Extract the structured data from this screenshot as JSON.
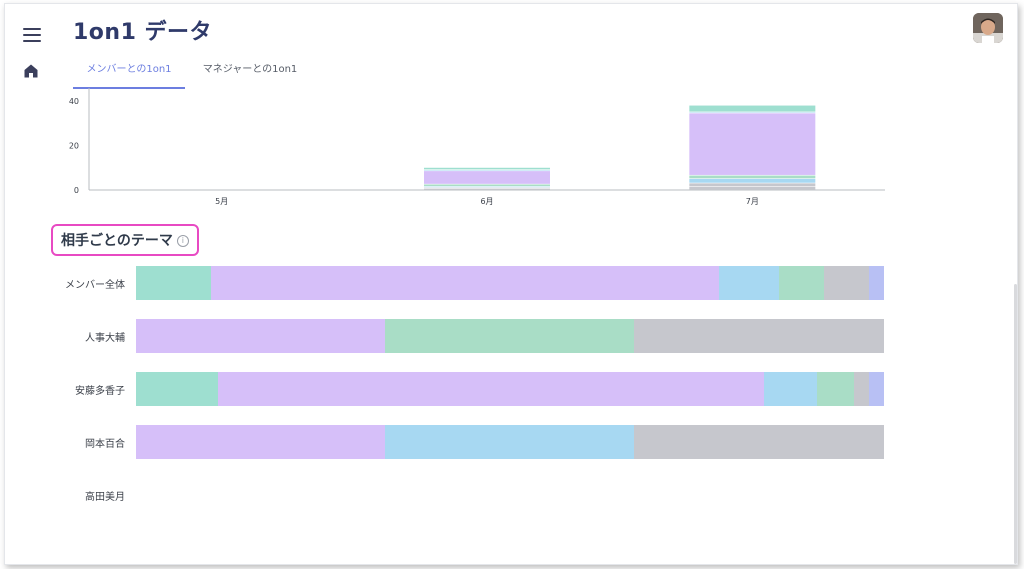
{
  "header": {
    "title": "1on1 データ",
    "menu_icon": "menu-icon",
    "home_icon": "home-icon",
    "avatar": "user-avatar"
  },
  "tabs": [
    {
      "label": "メンバーとの1on1",
      "active": true
    },
    {
      "label": "マネジャーとの1on1",
      "active": false
    }
  ],
  "colors": {
    "teal": "#9edfd0",
    "purple": "#d6bff9",
    "blue": "#a7d8f2",
    "green": "#a9ddc6",
    "gray": "#c6c7cd",
    "indigo": "#b8c0f4"
  },
  "chart_data": {
    "type": "bar",
    "stacked": true,
    "categories": [
      "5月",
      "6月",
      "7月"
    ],
    "ylim": [
      0,
      45
    ],
    "yticks": [
      0,
      20,
      40
    ],
    "series": [
      {
        "color": "#c6c7cd",
        "values": [
          0,
          0.5,
          1.5
        ]
      },
      {
        "color": "#c6c7cd",
        "values": [
          0,
          0.5,
          1.5
        ]
      },
      {
        "color": "#a7d8f2",
        "values": [
          0,
          0.5,
          2
        ]
      },
      {
        "color": "#a9ddc6",
        "values": [
          0,
          1,
          1.5
        ]
      },
      {
        "color": "#d6bff9",
        "values": [
          0,
          6,
          28
        ]
      },
      {
        "color": "#a7d8f2",
        "values": [
          0,
          0.5,
          0.5
        ]
      },
      {
        "color": "#9edfd0",
        "values": [
          0,
          1,
          3
        ]
      }
    ]
  },
  "section": {
    "title": "相手ごとのテーマ",
    "info_icon": "info-icon"
  },
  "theme_rows": [
    {
      "label": "メンバー全体",
      "segments": [
        {
          "color": "#9edfd0",
          "pct": 10
        },
        {
          "color": "#d6bff9",
          "pct": 68
        },
        {
          "color": "#a7d8f2",
          "pct": 8
        },
        {
          "color": "#a9ddc6",
          "pct": 6
        },
        {
          "color": "#c6c7cd",
          "pct": 6
        },
        {
          "color": "#b8c0f4",
          "pct": 2
        }
      ]
    },
    {
      "label": "人事大輔",
      "segments": [
        {
          "color": "#d6bff9",
          "pct": 33.3
        },
        {
          "color": "#a9ddc6",
          "pct": 33.3
        },
        {
          "color": "#c6c7cd",
          "pct": 33.4
        }
      ]
    },
    {
      "label": "安藤多香子",
      "segments": [
        {
          "color": "#9edfd0",
          "pct": 11
        },
        {
          "color": "#d6bff9",
          "pct": 73
        },
        {
          "color": "#a7d8f2",
          "pct": 7
        },
        {
          "color": "#a9ddc6",
          "pct": 5
        },
        {
          "color": "#c6c7cd",
          "pct": 2
        },
        {
          "color": "#b8c0f4",
          "pct": 2
        }
      ]
    },
    {
      "label": "岡本百合",
      "segments": [
        {
          "color": "#d6bff9",
          "pct": 33.3
        },
        {
          "color": "#a7d8f2",
          "pct": 33.3
        },
        {
          "color": "#c6c7cd",
          "pct": 33.4
        }
      ]
    },
    {
      "label": "高田美月",
      "segments": []
    }
  ]
}
